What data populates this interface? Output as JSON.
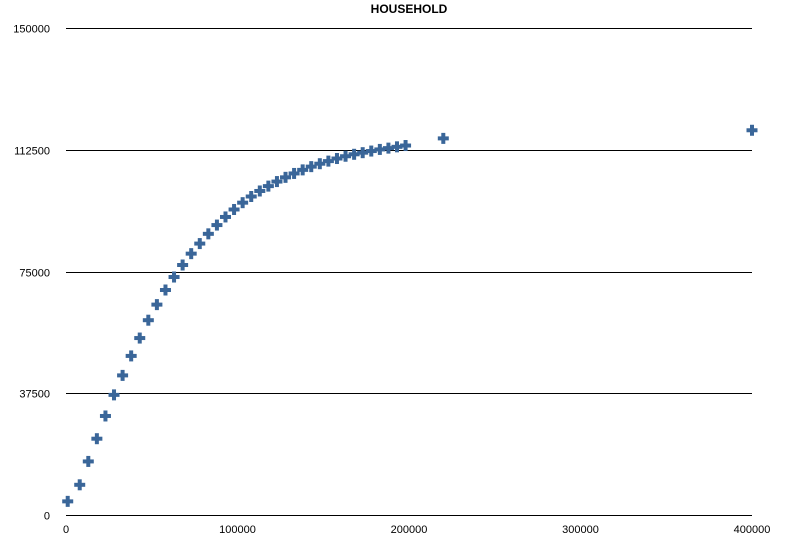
{
  "chart_data": {
    "type": "scatter",
    "title": "HOUSEHOLD",
    "xlabel": "",
    "ylabel": "",
    "xlim": [
      0,
      400000
    ],
    "ylim": [
      0,
      150000
    ],
    "x_ticks": [
      "0",
      "100000",
      "200000",
      "300000",
      "400000"
    ],
    "y_ticks": [
      "0",
      "37500",
      "75000",
      "112500",
      "150000"
    ],
    "grid": "horizontal",
    "marker": "plus",
    "color": "#3a6699",
    "series": [
      {
        "points": [
          [
            1000,
            4200
          ],
          [
            8000,
            9300
          ],
          [
            13000,
            16500
          ],
          [
            18000,
            23500
          ],
          [
            23000,
            30500
          ],
          [
            28000,
            37000
          ],
          [
            33000,
            43000
          ],
          [
            38000,
            49000
          ],
          [
            43000,
            54500
          ],
          [
            48000,
            60000
          ],
          [
            53000,
            64800
          ],
          [
            58000,
            69300
          ],
          [
            63000,
            73300
          ],
          [
            68000,
            77000
          ],
          [
            73000,
            80500
          ],
          [
            78000,
            83600
          ],
          [
            83000,
            86600
          ],
          [
            88000,
            89300
          ],
          [
            93000,
            91800
          ],
          [
            98000,
            94100
          ],
          [
            103000,
            96200
          ],
          [
            108000,
            98100
          ],
          [
            113000,
            99800
          ],
          [
            118000,
            101300
          ],
          [
            123000,
            102700
          ],
          [
            128000,
            104000
          ],
          [
            133000,
            105200
          ],
          [
            138000,
            106300
          ],
          [
            143000,
            107300
          ],
          [
            148000,
            108200
          ],
          [
            153000,
            109000
          ],
          [
            158000,
            109800
          ],
          [
            163000,
            110500
          ],
          [
            168000,
            111100
          ],
          [
            173000,
            111600
          ],
          [
            178000,
            112100
          ],
          [
            183000,
            112600
          ],
          [
            188000,
            113000
          ],
          [
            193000,
            113400
          ],
          [
            198000,
            113800
          ],
          [
            220000,
            116000
          ],
          [
            400000,
            118500
          ]
        ]
      }
    ]
  }
}
